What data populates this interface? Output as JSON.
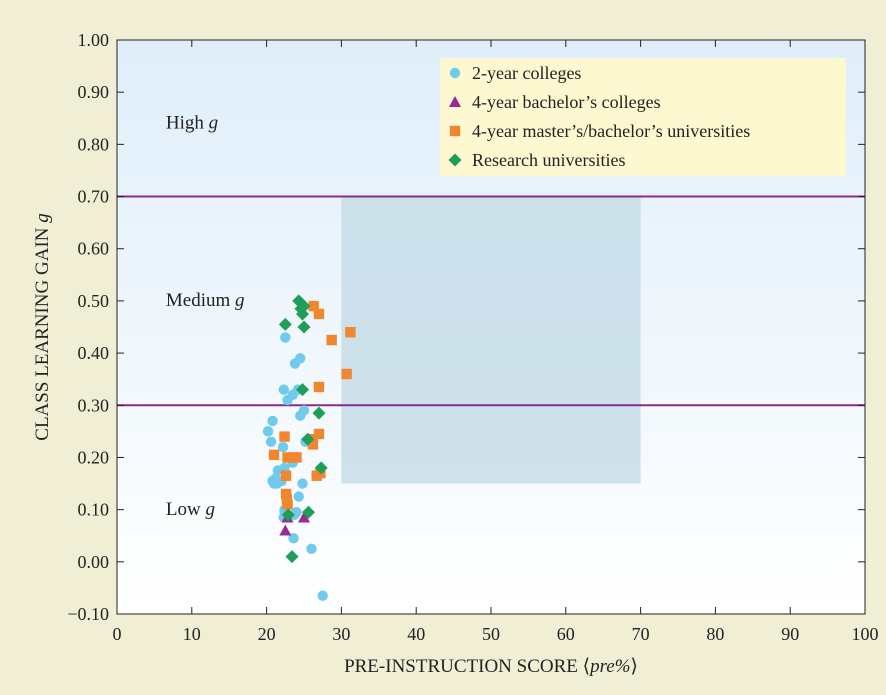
{
  "chart_data": {
    "type": "scatter",
    "title": "",
    "xlabel": "PRE-INSTRUCTION SCORE ⟨pre%⟩",
    "xlabel_parts": {
      "prefix": "PRE-INSTRUCTION SCORE ⟨",
      "emph": "pre%",
      "suffix": "⟩"
    },
    "ylabel": "CLASS LEARNING GAIN g",
    "ylabel_parts": {
      "prefix": "CLASS LEARNING GAIN ",
      "emph": "g"
    },
    "xlim": [
      0,
      100
    ],
    "ylim": [
      -0.1,
      1.0
    ],
    "x_ticks": [
      "0",
      "10",
      "20",
      "30",
      "40",
      "50",
      "60",
      "70",
      "80",
      "90",
      "100"
    ],
    "y_ticks": [
      "−0.10",
      "0.00",
      "0.10",
      "0.20",
      "0.30",
      "0.40",
      "0.50",
      "0.60",
      "0.70",
      "0.80",
      "0.90",
      "1.00"
    ],
    "grid": false,
    "legend_position": "top-right",
    "reference_lines": [
      {
        "y": 0.7,
        "color": "#8e2a8e"
      },
      {
        "y": 0.3,
        "color": "#8e2a8e"
      }
    ],
    "shaded_region": {
      "x": [
        30,
        70
      ],
      "y": [
        0.15,
        0.7
      ],
      "color": "#c4dbe6"
    },
    "region_labels": [
      {
        "text": "High ",
        "emph": "g",
        "x": 6,
        "y": 0.83
      },
      {
        "text": "Medium ",
        "emph": "g",
        "x": 6,
        "y": 0.49
      },
      {
        "text": "Low ",
        "emph": "g",
        "x": 6,
        "y": 0.09
      }
    ],
    "series": [
      {
        "name": "2-year colleges",
        "marker": "circle",
        "color": "#6fcaec",
        "points": [
          [
            22.5,
            0.43
          ],
          [
            24.5,
            0.39
          ],
          [
            23.8,
            0.38
          ],
          [
            22.3,
            0.33
          ],
          [
            24.2,
            0.33
          ],
          [
            22.8,
            0.31
          ],
          [
            23.5,
            0.32
          ],
          [
            25.0,
            0.29
          ],
          [
            24.5,
            0.28
          ],
          [
            20.8,
            0.27
          ],
          [
            20.2,
            0.25
          ],
          [
            20.6,
            0.23
          ],
          [
            22.2,
            0.22
          ],
          [
            25.2,
            0.23
          ],
          [
            23.5,
            0.19
          ],
          [
            22.4,
            0.18
          ],
          [
            21.5,
            0.175
          ],
          [
            21.2,
            0.16
          ],
          [
            20.8,
            0.155
          ],
          [
            21.0,
            0.15
          ],
          [
            21.4,
            0.15
          ],
          [
            22.0,
            0.155
          ],
          [
            24.8,
            0.15
          ],
          [
            24.3,
            0.125
          ],
          [
            22.4,
            0.1
          ],
          [
            22.4,
            0.095
          ],
          [
            22.3,
            0.085
          ],
          [
            23.7,
            0.09
          ],
          [
            24.0,
            0.095
          ],
          [
            23.6,
            0.045
          ],
          [
            26.0,
            0.025
          ],
          [
            27.5,
            -0.065
          ]
        ]
      },
      {
        "name": "4-year bachelor’s colleges",
        "marker": "triangle",
        "color": "#9a2a93",
        "points": [
          [
            22.5,
            0.06
          ],
          [
            25.0,
            0.085
          ],
          [
            22.8,
            0.085
          ]
        ]
      },
      {
        "name": "4-year master’s/bachelor’s universities",
        "marker": "square",
        "color": "#f0862e",
        "points": [
          [
            26.3,
            0.49
          ],
          [
            27.0,
            0.475
          ],
          [
            31.2,
            0.44
          ],
          [
            28.7,
            0.425
          ],
          [
            30.7,
            0.36
          ],
          [
            27.0,
            0.335
          ],
          [
            22.4,
            0.24
          ],
          [
            27.0,
            0.245
          ],
          [
            26.0,
            0.235
          ],
          [
            26.2,
            0.225
          ],
          [
            21.0,
            0.205
          ],
          [
            22.8,
            0.2
          ],
          [
            23.5,
            0.2
          ],
          [
            24.0,
            0.2
          ],
          [
            22.6,
            0.165
          ],
          [
            27.2,
            0.17
          ],
          [
            26.7,
            0.165
          ],
          [
            22.6,
            0.13
          ],
          [
            22.7,
            0.12
          ],
          [
            22.8,
            0.11
          ]
        ]
      },
      {
        "name": "Research universities",
        "marker": "diamond",
        "color": "#1e9e58",
        "points": [
          [
            24.3,
            0.5
          ],
          [
            25.0,
            0.49
          ],
          [
            24.6,
            0.485
          ],
          [
            22.5,
            0.455
          ],
          [
            24.8,
            0.475
          ],
          [
            25.0,
            0.45
          ],
          [
            24.8,
            0.33
          ],
          [
            27.0,
            0.285
          ],
          [
            25.5,
            0.235
          ],
          [
            27.3,
            0.18
          ],
          [
            25.6,
            0.095
          ],
          [
            22.9,
            0.09
          ],
          [
            23.4,
            0.01
          ]
        ]
      }
    ]
  }
}
